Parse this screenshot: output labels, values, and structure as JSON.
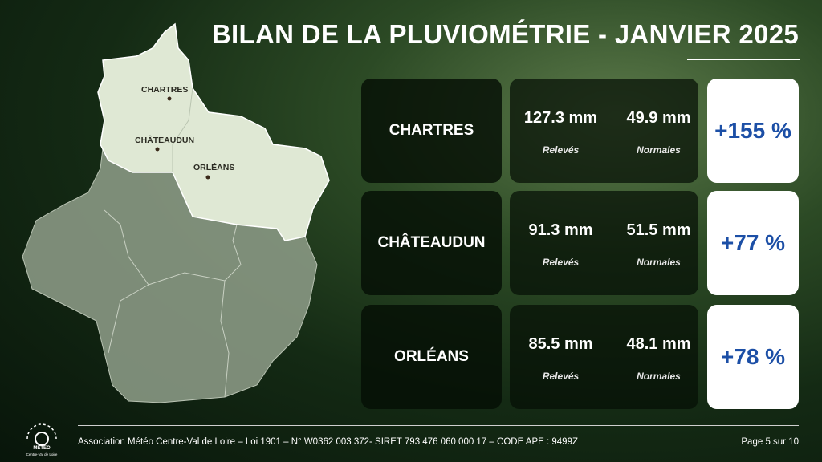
{
  "header": {
    "title": "BILAN DE LA PLUVIOMÉTRIE - JANVIER 2025"
  },
  "map": {
    "labels": [
      "CHARTRES",
      "CHÂTEAUDUN",
      "ORLÉANS"
    ]
  },
  "rows": [
    {
      "city": "CHARTRES",
      "measured": "127.3 mm",
      "measured_label": "Relevés",
      "normal": "49.9 mm",
      "normal_label": "Normales",
      "deviation": "+155 %"
    },
    {
      "city": "CHÂTEAUDUN",
      "measured": "91.3 mm",
      "measured_label": "Relevés",
      "normal": "51.5 mm",
      "normal_label": "Normales",
      "deviation": "+77 %"
    },
    {
      "city": "ORLÉANS",
      "measured": "85.5 mm",
      "measured_label": "Relevés",
      "normal": "48.1 mm",
      "normal_label": "Normales",
      "deviation": "+78 %"
    }
  ],
  "footer": {
    "logo_name": "MÉTÉO",
    "logo_region": "Centre-Val de Loire",
    "text": "Association Météo Centre-Val de Loire – Loi 1901 – N° W0362 003 372- SIRET 793 476 060 000 17 – CODE APE : 9499Z",
    "page": "Page 5 sur 10"
  }
}
